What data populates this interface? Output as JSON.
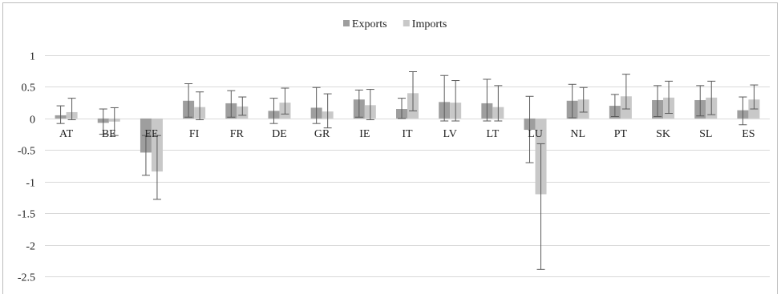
{
  "chart_data": {
    "type": "bar",
    "title": "",
    "xlabel": "",
    "ylabel": "",
    "ylim": [
      -2.5,
      1
    ],
    "yticks": [
      1,
      0.5,
      0,
      -0.5,
      -1,
      -1.5,
      -2,
      -2.5
    ],
    "grid": true,
    "legend_position": "top-center",
    "categories": [
      "AT",
      "BE",
      "EE",
      "FI",
      "FR",
      "DE",
      "GR",
      "IE",
      "IT",
      "LV",
      "LT",
      "LU",
      "NL",
      "PT",
      "SK",
      "SL",
      "ES"
    ],
    "series": [
      {
        "name": "Exports",
        "color": "#9e9e9e",
        "values": [
          0.05,
          -0.07,
          -0.54,
          0.28,
          0.24,
          0.12,
          0.17,
          0.3,
          0.15,
          0.26,
          0.24,
          -0.18,
          0.28,
          0.2,
          0.29,
          0.29,
          0.13
        ],
        "error_low": [
          -0.08,
          -0.25,
          -0.9,
          0.02,
          0.02,
          -0.08,
          -0.08,
          0.02,
          0.0,
          -0.04,
          -0.04,
          -0.7,
          0.01,
          0.03,
          0.03,
          0.04,
          -0.1
        ],
        "error_high": [
          0.2,
          0.15,
          -0.27,
          0.55,
          0.44,
          0.32,
          0.49,
          0.45,
          0.32,
          0.68,
          0.62,
          0.35,
          0.54,
          0.38,
          0.52,
          0.52,
          0.34
        ]
      },
      {
        "name": "Imports",
        "color": "#c8c8c8",
        "values": [
          0.1,
          -0.05,
          -0.84,
          0.18,
          0.19,
          0.25,
          0.11,
          0.21,
          0.4,
          0.25,
          0.18,
          -1.2,
          0.3,
          0.35,
          0.33,
          0.33,
          0.3
        ],
        "error_low": [
          -0.02,
          -0.27,
          -1.28,
          -0.02,
          0.05,
          0.07,
          -0.15,
          -0.02,
          0.12,
          -0.04,
          -0.04,
          -2.39,
          0.1,
          0.15,
          0.08,
          0.06,
          0.15
        ],
        "error_high": [
          0.32,
          0.17,
          -0.27,
          0.42,
          0.34,
          0.48,
          0.39,
          0.46,
          0.74,
          0.6,
          0.52,
          -0.4,
          0.49,
          0.7,
          0.59,
          0.59,
          0.53
        ]
      }
    ]
  }
}
